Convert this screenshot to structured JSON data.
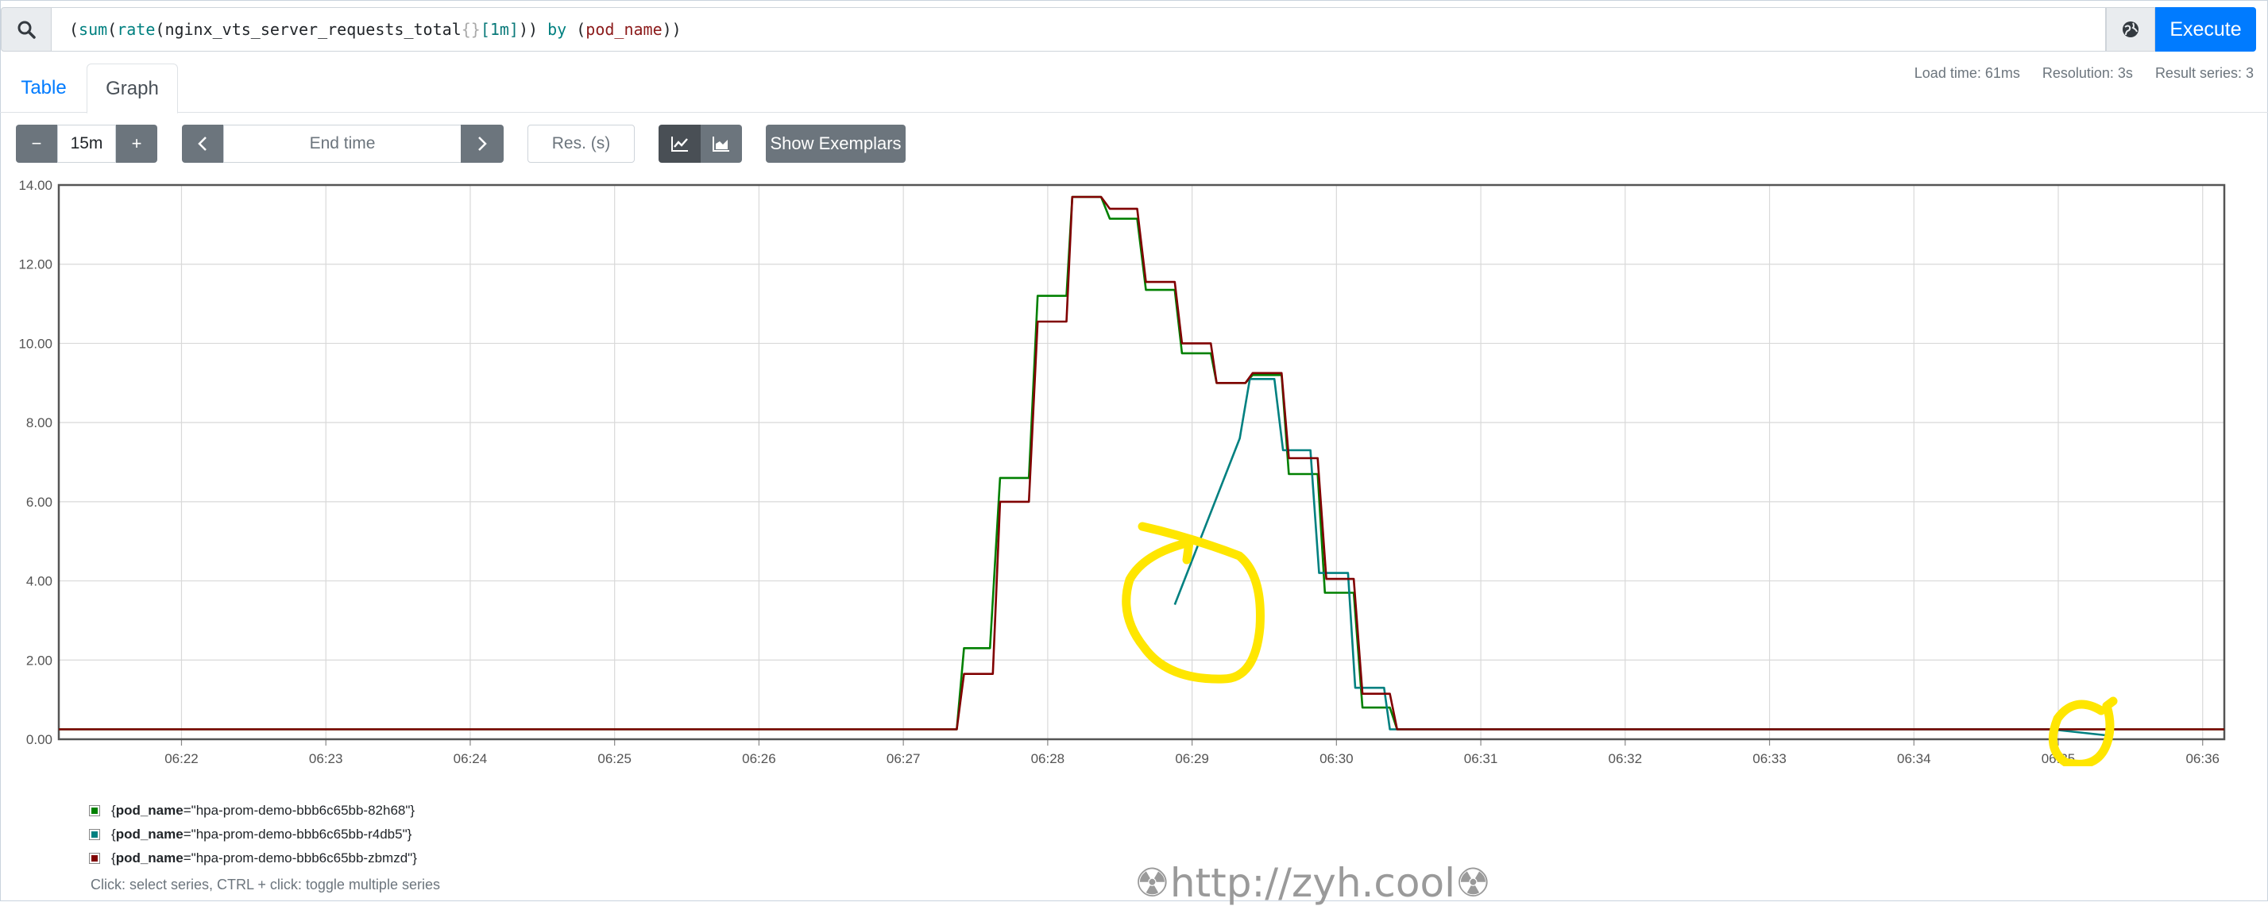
{
  "query": {
    "parts": [
      "(",
      "sum",
      "(",
      "rate",
      "(",
      "nginx_vts_server_requests_total",
      "{}",
      "[1m]",
      "))",
      " by ",
      "(",
      "pod_name",
      "))"
    ],
    "execute_label": "Execute"
  },
  "tabs": {
    "table": "Table",
    "graph": "Graph"
  },
  "stats": {
    "load_time": "Load time: 61ms",
    "resolution": "Resolution: 3s",
    "result_series": "Result series: 3"
  },
  "controls": {
    "range_minus": "−",
    "range_value": "15m",
    "range_plus": "+",
    "end_time_placeholder": "End time",
    "res_placeholder": "Res. (s)",
    "exemplars_label": "Show Exemplars"
  },
  "icons": {
    "search": "search-icon",
    "globe": "globe-icon",
    "prev": "chevron-left-icon",
    "next": "chevron-right-icon",
    "line": "line-chart-icon",
    "stacked": "area-chart-icon"
  },
  "colors": {
    "accent": "#007bff",
    "series1": "#008000",
    "series2": "#008080",
    "series3": "#800000",
    "annotation": "#ffe600"
  },
  "chart_data": {
    "type": "line",
    "ylim": [
      0,
      14
    ],
    "yticks": [
      "0.00",
      "2.00",
      "4.00",
      "6.00",
      "8.00",
      "10.00",
      "12.00",
      "14.00"
    ],
    "xticks": [
      "06:22",
      "06:23",
      "06:24",
      "06:25",
      "06:26",
      "06:27",
      "06:28",
      "06:29",
      "06:30",
      "06:31",
      "06:32",
      "06:33",
      "06:34",
      "06:35",
      "06:36"
    ],
    "x_units": "minutes past 06:00",
    "xlim": [
      21.15,
      36.15
    ],
    "grid": true,
    "series": [
      {
        "name": "{pod_name=\"hpa-prom-demo-bbb6c65bb-82h68\"}",
        "color": "#008000",
        "points": [
          [
            21.15,
            0.25
          ],
          [
            27.37,
            0.25
          ],
          [
            27.42,
            2.3
          ],
          [
            27.6,
            2.3
          ],
          [
            27.67,
            6.6
          ],
          [
            27.87,
            6.6
          ],
          [
            27.93,
            11.2
          ],
          [
            28.13,
            11.2
          ],
          [
            28.17,
            13.7
          ],
          [
            28.37,
            13.7
          ],
          [
            28.43,
            13.15
          ],
          [
            28.62,
            13.15
          ],
          [
            28.68,
            11.35
          ],
          [
            28.88,
            11.35
          ],
          [
            28.93,
            9.75
          ],
          [
            29.13,
            9.75
          ],
          [
            29.17,
            9.0
          ],
          [
            29.37,
            9.0
          ],
          [
            29.42,
            9.2
          ],
          [
            29.62,
            9.2
          ],
          [
            29.67,
            6.7
          ],
          [
            29.87,
            6.7
          ],
          [
            29.92,
            3.7
          ],
          [
            30.12,
            3.7
          ],
          [
            30.18,
            0.8
          ],
          [
            30.37,
            0.8
          ],
          [
            30.42,
            0.25
          ],
          [
            36.15,
            0.25
          ]
        ]
      },
      {
        "name": "{pod_name=\"hpa-prom-demo-bbb6c65bb-r4db5\"}",
        "color": "#008080",
        "points": [
          [
            28.88,
            3.4
          ],
          [
            29.33,
            7.6
          ],
          [
            29.4,
            9.1
          ],
          [
            29.57,
            9.1
          ],
          [
            29.63,
            7.3
          ],
          [
            29.82,
            7.3
          ],
          [
            29.88,
            4.2
          ],
          [
            30.08,
            4.2
          ],
          [
            30.13,
            1.3
          ],
          [
            30.33,
            1.3
          ],
          [
            30.37,
            0.25
          ],
          [
            34.95,
            0.25
          ],
          [
            35.33,
            0.1
          ]
        ]
      },
      {
        "name": "{pod_name=\"hpa-prom-demo-bbb6c65bb-zbmzd\"}",
        "color": "#800000",
        "points": [
          [
            21.15,
            0.25
          ],
          [
            27.37,
            0.25
          ],
          [
            27.42,
            1.65
          ],
          [
            27.62,
            1.65
          ],
          [
            27.67,
            6.0
          ],
          [
            27.87,
            6.0
          ],
          [
            27.93,
            10.55
          ],
          [
            28.13,
            10.55
          ],
          [
            28.17,
            13.7
          ],
          [
            28.37,
            13.7
          ],
          [
            28.43,
            13.4
          ],
          [
            28.62,
            13.4
          ],
          [
            28.68,
            11.55
          ],
          [
            28.88,
            11.55
          ],
          [
            28.93,
            10.0
          ],
          [
            29.13,
            10.0
          ],
          [
            29.17,
            9.0
          ],
          [
            29.37,
            9.0
          ],
          [
            29.42,
            9.25
          ],
          [
            29.62,
            9.25
          ],
          [
            29.67,
            7.1
          ],
          [
            29.87,
            7.1
          ],
          [
            29.93,
            4.05
          ],
          [
            30.12,
            4.05
          ],
          [
            30.18,
            1.15
          ],
          [
            30.37,
            1.15
          ],
          [
            30.42,
            0.25
          ],
          [
            36.15,
            0.25
          ]
        ]
      }
    ]
  },
  "legend": {
    "items": [
      {
        "key": "pod_name",
        "value": "\"hpa-prom-demo-bbb6c65bb-82h68\"",
        "color": "#008000"
      },
      {
        "key": "pod_name",
        "value": "\"hpa-prom-demo-bbb6c65bb-r4db5\"",
        "color": "#008080"
      },
      {
        "key": "pod_name",
        "value": "\"hpa-prom-demo-bbb6c65bb-zbmzd\"",
        "color": "#800000"
      }
    ],
    "hint": "Click: select series, CTRL + click: toggle multiple series"
  },
  "watermark": "☢http://zyh.cool☢"
}
